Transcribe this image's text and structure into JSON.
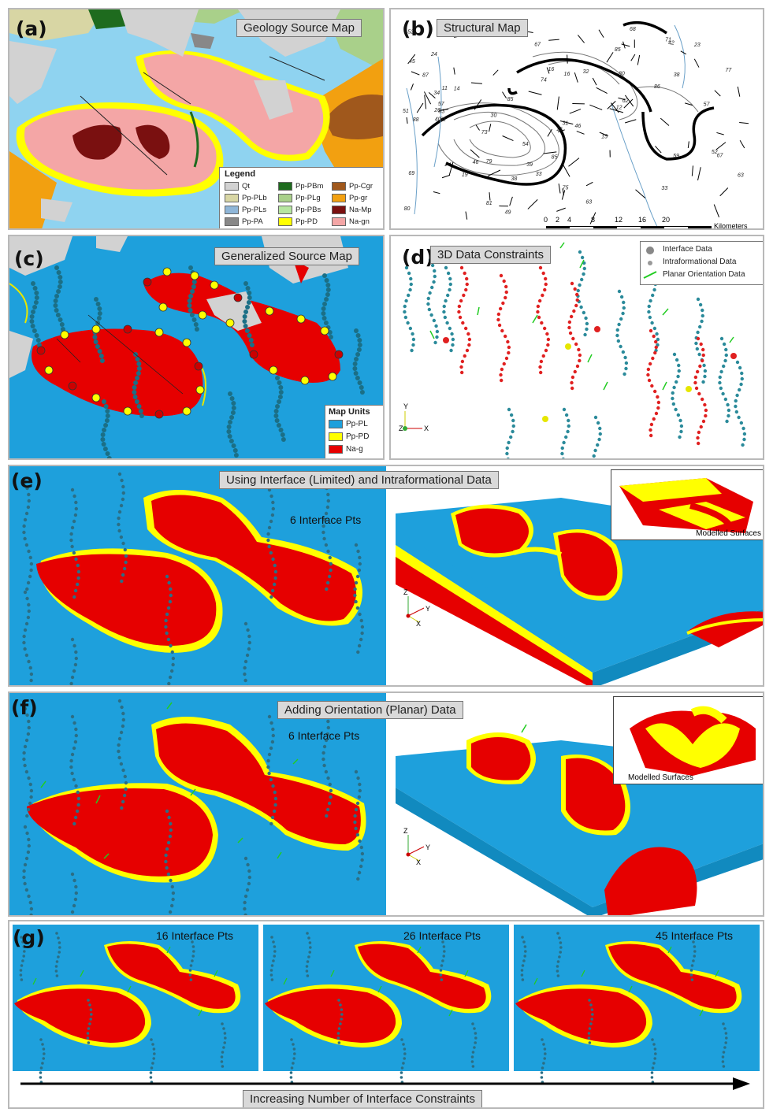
{
  "panels": {
    "a": {
      "label": "(a)",
      "title": "Geology Source Map"
    },
    "b": {
      "label": "(b)",
      "title": "Structural Map"
    },
    "c": {
      "label": "(c)",
      "title": "Generalized Source Map"
    },
    "d": {
      "label": "(d)",
      "title": "3D Data Constraints"
    },
    "e": {
      "label": "(e)",
      "title": "Using Interface (Limited) and Intraformational Data",
      "pts": "6 Interface Pts",
      "inset": "Modelled Surfaces"
    },
    "f": {
      "label": "(f)",
      "title": "Adding Orientation (Planar) Data",
      "pts": "6 Interface Pts",
      "inset": "Modelled Surfaces"
    },
    "g": {
      "label": "(g)",
      "pts": [
        "16 Interface Pts",
        "26 Interface Pts",
        "45 Interface Pts"
      ],
      "arrow": "Increasing Number of Interface Constraints"
    }
  },
  "geology_legend": {
    "title": "Legend",
    "items": [
      {
        "code": "Qt",
        "color": "#d2d2d2"
      },
      {
        "code": "Pp-PBm",
        "color": "#1e6b1e"
      },
      {
        "code": "Pp-Cgr",
        "color": "#a0581c"
      },
      {
        "code": "Pp-PLb",
        "color": "#d8d6a4"
      },
      {
        "code": "Pp-PLg",
        "color": "#a9d08a"
      },
      {
        "code": "Pp-gr",
        "color": "#f2a010"
      },
      {
        "code": "Pp-PLs",
        "color": "#8fb6d8"
      },
      {
        "code": "Pp-PBs",
        "color": "#b6e6a0"
      },
      {
        "code": "Na-Mp",
        "color": "#7a1010"
      },
      {
        "code": "Pp-PA",
        "color": "#888888"
      },
      {
        "code": "Pp-PD",
        "color": "#ffff00"
      },
      {
        "code": "Na-gn",
        "color": "#f4a6a6"
      }
    ]
  },
  "scale_bar": {
    "ticks": [
      "0",
      "2",
      "4",
      "8",
      "12",
      "16",
      "20"
    ],
    "unit": "Kilometers"
  },
  "map_units_legend": {
    "title": "Map Units",
    "items": [
      {
        "code": "Pp-PL",
        "color": "#1ea0dc"
      },
      {
        "code": "Pp-PD",
        "color": "#ffff00"
      },
      {
        "code": "Na-g",
        "color": "#e60000"
      }
    ]
  },
  "data_legend": {
    "items": [
      "Interface Data",
      "Intraformational Data",
      "Planar Orientation Data"
    ]
  },
  "axes": {
    "x": "X",
    "y": "Y",
    "z": "Z"
  },
  "structural_labels": [
    "87",
    "46",
    "63",
    "34",
    "24",
    "14",
    "11",
    "57",
    "38",
    "31",
    "52",
    "39",
    "16",
    "38",
    "12",
    "75",
    "61",
    "16",
    "59",
    "46",
    "53",
    "71",
    "74",
    "51",
    "86",
    "88",
    "15",
    "69",
    "85",
    "42",
    "63",
    "77",
    "85",
    "67",
    "57",
    "33",
    "19",
    "15",
    "54",
    "26",
    "67",
    "32",
    "80",
    "80",
    "81",
    "79",
    "62",
    "23",
    "73",
    "33",
    "68",
    "45",
    "49",
    "52",
    "73",
    "85",
    "30",
    "40"
  ],
  "colors": {
    "water_blue": "#1ea0dc",
    "unit_yellow": "#ffff00",
    "unit_red": "#e60000",
    "data_teal": "#2a8a9a",
    "orientation_green": "#22cc22",
    "map_light_blue": "#8fd3f0"
  }
}
